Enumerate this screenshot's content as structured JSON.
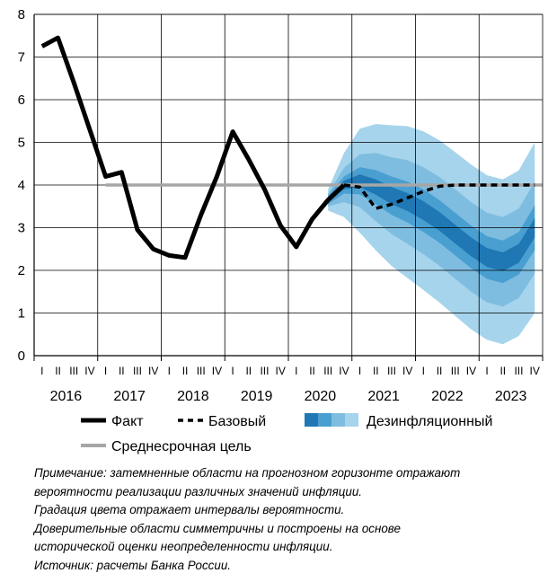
{
  "chart_data": {
    "type": "line",
    "ylim": [
      0,
      8
    ],
    "yticks": [
      0,
      1,
      2,
      3,
      4,
      5,
      6,
      7,
      8
    ],
    "years": [
      "2016",
      "2017",
      "2018",
      "2019",
      "2020",
      "2021",
      "2022",
      "2023"
    ],
    "quarters": [
      "I",
      "II",
      "III",
      "IV"
    ],
    "x_index_range": [
      0,
      31
    ],
    "grid": true,
    "series": [
      {
        "name": "Факт",
        "style": "solid-thick",
        "color": "#000000",
        "x": [
          0,
          1,
          2,
          3,
          4,
          5,
          6,
          7,
          8,
          9,
          10,
          11,
          12,
          13,
          14,
          15,
          16,
          17,
          18,
          19
        ],
        "values": [
          7.25,
          7.45,
          6.4,
          5.3,
          4.2,
          4.3,
          2.95,
          2.5,
          2.35,
          2.3,
          3.3,
          4.2,
          5.25,
          4.6,
          3.9,
          3.05,
          2.55,
          3.2,
          3.65,
          4.0
        ]
      },
      {
        "name": "Базовый",
        "style": "dashed",
        "color": "#000000",
        "x": [
          19,
          20,
          21,
          22,
          23,
          24,
          25,
          26,
          27,
          28,
          29,
          30,
          31
        ],
        "values": [
          4.0,
          3.95,
          3.45,
          3.55,
          3.7,
          3.85,
          3.97,
          4.0,
          4.0,
          4.0,
          4.0,
          4.0,
          4.0
        ]
      },
      {
        "name": "Среднесрочная цель",
        "style": "solid",
        "color": "#a6a6a6",
        "x": [
          4,
          31
        ],
        "values": [
          4.0,
          4.0
        ]
      }
    ],
    "fan": {
      "name": "Дезинфляционный",
      "x": [
        18,
        19,
        20,
        21,
        22,
        23,
        24,
        25,
        26,
        27,
        28,
        29,
        30,
        31
      ],
      "center": [
        3.65,
        4.0,
        4.1,
        3.95,
        3.75,
        3.6,
        3.4,
        3.15,
        2.85,
        2.55,
        2.3,
        2.2,
        2.4,
        3.0
      ],
      "half_widths": [
        [
          0.05,
          0.1,
          0.15,
          0.18,
          0.2,
          0.21,
          0.22,
          0.22,
          0.22,
          0.22,
          0.22,
          0.22,
          0.22,
          0.23
        ],
        [
          0.1,
          0.2,
          0.32,
          0.4,
          0.45,
          0.48,
          0.5,
          0.5,
          0.5,
          0.5,
          0.5,
          0.5,
          0.5,
          0.53
        ],
        [
          0.15,
          0.4,
          0.62,
          0.8,
          0.9,
          0.98,
          1.02,
          1.04,
          1.05,
          1.05,
          1.05,
          1.05,
          1.05,
          1.08
        ],
        [
          0.25,
          0.75,
          1.22,
          1.48,
          1.65,
          1.78,
          1.86,
          1.9,
          1.92,
          1.93,
          1.93,
          1.93,
          1.94,
          2.0
        ]
      ],
      "colors": [
        "#1f78b4",
        "#4a9fd1",
        "#7fbde0",
        "#a6d4ec"
      ]
    },
    "legend": [
      "Факт",
      "Базовый",
      "Дезинфляционный",
      "Среднесрочная цель"
    ]
  },
  "notes": [
    "Примечание: затемненные области на прогнозном горизонте отражают",
    "вероятности реализации различных значений инфляции.",
    "Градация цвета отражает интервалы вероятности.",
    "Доверительные области симметричны и построены на основе",
    "исторической оценки неопределенности инфляции.",
    "Источник: расчеты Банка России."
  ]
}
